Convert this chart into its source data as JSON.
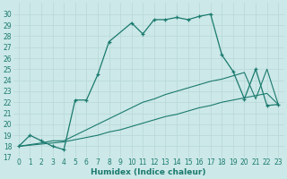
{
  "xlabel": "Humidex (Indice chaleur)",
  "bg_color": "#cce8e8",
  "line_color": "#1a7a6e",
  "grid_color": "#b8d8d8",
  "series1_x": [
    0,
    1,
    2,
    3,
    4,
    5,
    6,
    7,
    8,
    10,
    11,
    12,
    13,
    14,
    15,
    16,
    17,
    18,
    19,
    20,
    21,
    22,
    23
  ],
  "series1_y": [
    18.0,
    19.0,
    18.5,
    18.0,
    17.7,
    22.2,
    22.2,
    24.5,
    27.5,
    29.2,
    28.2,
    29.5,
    29.5,
    29.7,
    29.5,
    29.8,
    30.0,
    26.3,
    24.8,
    22.3,
    25.0,
    21.7,
    21.8
  ],
  "series2_x": [
    0,
    2,
    3,
    4,
    5,
    6,
    7,
    8,
    9,
    10,
    11,
    12,
    13,
    14,
    15,
    16,
    17,
    18,
    19,
    20,
    21,
    22,
    23
  ],
  "series2_y": [
    18.0,
    18.3,
    18.5,
    18.5,
    19.0,
    19.5,
    20.0,
    20.5,
    21.0,
    21.5,
    22.0,
    22.3,
    22.7,
    23.0,
    23.3,
    23.6,
    23.9,
    24.1,
    24.4,
    24.7,
    22.3,
    25.0,
    21.8
  ],
  "series3_x": [
    0,
    1,
    2,
    3,
    4,
    5,
    6,
    7,
    8,
    9,
    10,
    11,
    12,
    13,
    14,
    15,
    16,
    17,
    18,
    19,
    20,
    21,
    22,
    23
  ],
  "series3_y": [
    18.0,
    18.1,
    18.2,
    18.3,
    18.4,
    18.6,
    18.8,
    19.0,
    19.3,
    19.5,
    19.8,
    20.1,
    20.4,
    20.7,
    20.9,
    21.2,
    21.5,
    21.7,
    22.0,
    22.2,
    22.4,
    22.6,
    22.8,
    21.8
  ],
  "xlim": [
    -0.5,
    23.5
  ],
  "ylim": [
    17,
    31
  ],
  "yticks": [
    17,
    18,
    19,
    20,
    21,
    22,
    23,
    24,
    25,
    26,
    27,
    28,
    29,
    30
  ],
  "xticks": [
    0,
    1,
    2,
    3,
    4,
    5,
    6,
    7,
    8,
    9,
    10,
    11,
    12,
    13,
    14,
    15,
    16,
    17,
    18,
    19,
    20,
    21,
    22,
    23
  ],
  "tick_fontsize": 5.5,
  "xlabel_fontsize": 6.5
}
